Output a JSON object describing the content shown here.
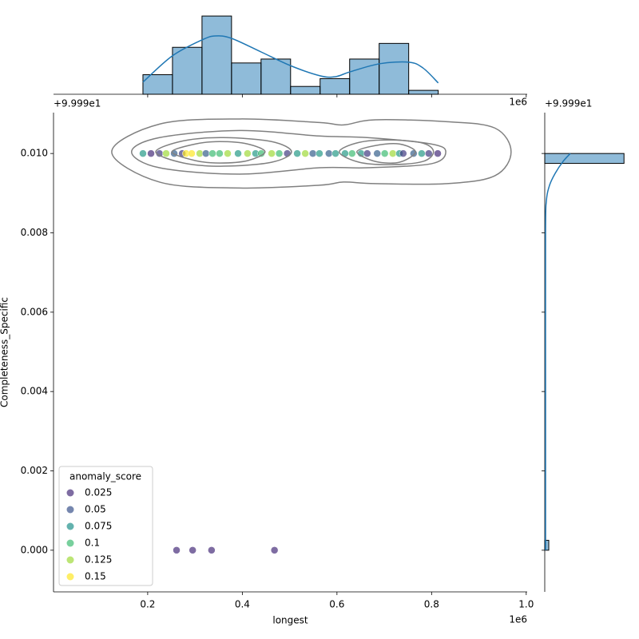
{
  "chart_data": [
    {
      "type": "scatter",
      "xlabel": "longest",
      "ylabel": "Completeness_Specific",
      "x_offset_text": "1e6",
      "y_offset_text": "+9.999e1",
      "xlim": [
        0.001,
        1.002
      ],
      "ylim": [
        -0.00105,
        0.01103
      ],
      "xticks": [
        0.2,
        0.4,
        0.6,
        0.8,
        {
          "value": 1.0,
          "label": "1.0"
        }
      ],
      "yticks": [
        {
          "value": 0,
          "label": "0.000"
        },
        {
          "value": 0.002,
          "label": "0.002"
        },
        {
          "value": 0.004,
          "label": "0.004"
        },
        {
          "value": 0.006,
          "label": "0.006"
        },
        {
          "value": 0.008,
          "label": "0.008"
        },
        {
          "value": 0.01,
          "label": "0.010"
        }
      ],
      "x": [
        0.19,
        0.207,
        0.225,
        0.239,
        0.256,
        0.273,
        0.281,
        0.293,
        0.31,
        0.323,
        0.337,
        0.352,
        0.369,
        0.391,
        0.411,
        0.428,
        0.44,
        0.462,
        0.478,
        0.495,
        0.516,
        0.533,
        0.549,
        0.563,
        0.583,
        0.597,
        0.617,
        0.632,
        0.651,
        0.664,
        0.685,
        0.701,
        0.718,
        0.732,
        0.74,
        0.762,
        0.779,
        0.794,
        0.813,
        0.261,
        0.295,
        0.335,
        0.468
      ],
      "y": [
        0.01,
        0.01,
        0.01,
        0.01,
        0.01,
        0.01,
        0.01,
        0.01,
        0.01,
        0.01,
        0.01,
        0.01,
        0.01,
        0.01,
        0.01,
        0.01,
        0.01,
        0.01,
        0.01,
        0.01,
        0.01,
        0.01,
        0.01,
        0.01,
        0.01,
        0.01,
        0.01,
        0.01,
        0.01,
        0.01,
        0.01,
        0.01,
        0.01,
        0.01,
        0.01,
        0.01,
        0.01,
        0.01,
        0.01,
        0,
        0,
        0,
        0
      ],
      "hue": [
        0.08,
        0.015,
        0.035,
        0.125,
        0.055,
        0.035,
        0.15,
        0.15,
        0.125,
        0.055,
        0.1,
        0.1,
        0.125,
        0.08,
        0.125,
        0.08,
        0.1,
        0.125,
        0.1,
        0.035,
        0.08,
        0.125,
        0.055,
        0.08,
        0.055,
        0.08,
        0.08,
        0.1,
        0.08,
        0.035,
        0.055,
        0.1,
        0.125,
        0.08,
        0.035,
        0.055,
        0.08,
        0.035,
        0.015,
        0.015,
        0.015,
        0.015,
        0.015
      ],
      "alpha": 0.7,
      "legend": {
        "title": "anomaly_score",
        "corner": "lower left",
        "entries": [
          {
            "value": 0.025,
            "color": "#472d7b"
          },
          {
            "value": 0.05,
            "color": "#3b528b"
          },
          {
            "value": 0.075,
            "color": "#21918c"
          },
          {
            "value": 0.1,
            "color": "#3fbc73"
          },
          {
            "value": 0.125,
            "color": "#9fda3a"
          },
          {
            "value": 0.15,
            "color": "#fde725"
          }
        ]
      },
      "contour_color": "#808080",
      "contours": [
        {
          "x": [
            0.124,
            0.225,
            0.394,
            0.563,
            0.614,
            0.681,
            0.833,
            0.934,
            0.968,
            0.934,
            0.833,
            0.681,
            0.614,
            0.563,
            0.394,
            0.225
          ],
          "y": [
            0.01004,
            0.01074,
            0.01087,
            0.01078,
            0.01072,
            0.01085,
            0.0108,
            0.01064,
            0.01004,
            0.00944,
            0.00924,
            0.00924,
            0.00928,
            0.0092,
            0.00913,
            0.00928
          ]
        },
        {
          "x": [
            0.166,
            0.225,
            0.394,
            0.563,
            0.664,
            0.799,
            0.83,
            0.799,
            0.664,
            0.563,
            0.394,
            0.225
          ],
          "y": [
            0.01004,
            0.0104,
            0.01058,
            0.01044,
            0.0104,
            0.01024,
            0.01004,
            0.00974,
            0.00964,
            0.00964,
            0.00948,
            0.00964
          ]
        },
        {
          "x": [
            0.217,
            0.276,
            0.36,
            0.462,
            0.504,
            0.462,
            0.36,
            0.276
          ],
          "y": [
            0.01004,
            0.01032,
            0.0104,
            0.0103,
            0.01004,
            0.00978,
            0.00968,
            0.00976
          ]
        },
        {
          "x": [
            0.251,
            0.301,
            0.352,
            0.411,
            0.448,
            0.411,
            0.352,
            0.301
          ],
          "y": [
            0.01004,
            0.01024,
            0.0103,
            0.01024,
            0.01004,
            0.00982,
            0.00976,
            0.00982
          ]
        },
        {
          "x": [
            0.605,
            0.647,
            0.715,
            0.782,
            0.804,
            0.782,
            0.715,
            0.647
          ],
          "y": [
            0.01004,
            0.01028,
            0.01034,
            0.01026,
            0.01004,
            0.0098,
            0.00972,
            0.00978
          ]
        },
        {
          "x": [
            0.642,
            0.681,
            0.732,
            0.766,
            0.732,
            0.681
          ],
          "y": [
            0.01004,
            0.0102,
            0.01024,
            0.01004,
            0.00978,
            0.0098
          ]
        }
      ]
    },
    {
      "type": "histogram",
      "orientation": "vertical",
      "x_offset_text": "1e6",
      "xlim": [
        0.001,
        1.002
      ],
      "ylim": [
        0,
        24.1
      ],
      "xticks": [
        0.2,
        0.4,
        0.6,
        0.8,
        1.0
      ],
      "bins": [
        0.19,
        0.2524,
        0.3148,
        0.3772,
        0.4396,
        0.502,
        0.5644,
        0.6268,
        0.6892,
        0.7516,
        0.814
      ],
      "values": [
        5,
        12,
        20,
        8,
        9,
        2,
        4,
        9,
        13,
        1
      ],
      "color": "#1f77b4",
      "kde": {
        "x": [
          0.19,
          0.252,
          0.315,
          0.343,
          0.377,
          0.44,
          0.502,
          0.565,
          0.597,
          0.627,
          0.69,
          0.752,
          0.782,
          0.814
        ],
        "values": [
          3.1,
          9.8,
          13.9,
          14.9,
          14.3,
          10.8,
          7.3,
          4.7,
          4.5,
          5.7,
          7.8,
          8.2,
          6.7,
          2.9
        ]
      }
    },
    {
      "type": "histogram",
      "orientation": "horizontal",
      "y_offset_text": "+9.999e1",
      "xlim": [
        0,
        86
      ],
      "ylim": [
        -0.00105,
        0.01103
      ],
      "yticks": [
        0,
        0.002,
        0.004,
        0.006,
        0.008,
        0.01
      ],
      "bins": [
        0,
        0.00025,
        0.0005,
        0.00075,
        0.001,
        0.00125,
        0.0015,
        0.00175,
        0.002,
        0.00225,
        0.0025,
        0.00275,
        0.003,
        0.00325,
        0.0035,
        0.00375,
        0.004,
        0.00425,
        0.0045,
        0.00475,
        0.005,
        0.00525,
        0.0055,
        0.00575,
        0.006,
        0.00625,
        0.0065,
        0.00675,
        0.007,
        0.00725,
        0.0075,
        0.00775,
        0.008,
        0.00825,
        0.0085,
        0.00875,
        0.009,
        0.00925,
        0.0095,
        0.00975,
        0.01
      ],
      "values": [
        4,
        0,
        0,
        0,
        0,
        0,
        0,
        0,
        0,
        0,
        0,
        0,
        0,
        0,
        0,
        0,
        0,
        0,
        0,
        0,
        0,
        0,
        0,
        0,
        0,
        0,
        0,
        0,
        0,
        0,
        0,
        0,
        0,
        0,
        0,
        0,
        0,
        0,
        0,
        79
      ],
      "color": "#1f77b4",
      "kde": {
        "y": [
          0,
          0.004,
          0.008,
          0.0088,
          0.0092,
          0.0095,
          0.0098,
          0.01
        ],
        "values": [
          0.8,
          0.8,
          0.8,
          1.6,
          4.8,
          10.4,
          18.3,
          25.5
        ]
      }
    }
  ]
}
